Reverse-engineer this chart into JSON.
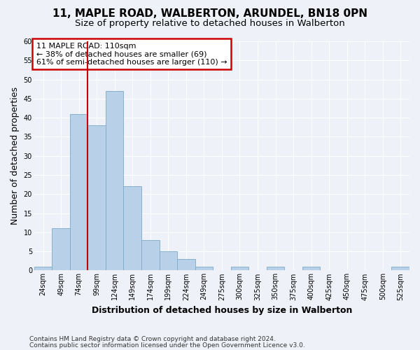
{
  "title1": "11, MAPLE ROAD, WALBERTON, ARUNDEL, BN18 0PN",
  "title2": "Size of property relative to detached houses in Walberton",
  "xlabel": "Distribution of detached houses by size in Walberton",
  "ylabel": "Number of detached properties",
  "categories": [
    "24sqm",
    "49sqm",
    "74sqm",
    "99sqm",
    "124sqm",
    "149sqm",
    "174sqm",
    "199sqm",
    "224sqm",
    "249sqm",
    "275sqm",
    "300sqm",
    "325sqm",
    "350sqm",
    "375sqm",
    "400sqm",
    "425sqm",
    "450sqm",
    "475sqm",
    "500sqm",
    "525sqm"
  ],
  "values": [
    1,
    11,
    41,
    38,
    47,
    22,
    8,
    5,
    3,
    1,
    0,
    1,
    0,
    1,
    0,
    1,
    0,
    0,
    0,
    0,
    1
  ],
  "bar_color": "#b8d0e8",
  "bar_edge_color": "#7aaac8",
  "vline_x": 2.5,
  "vline_color": "#cc0000",
  "annotation_title": "11 MAPLE ROAD: 110sqm",
  "annotation_line1": "← 38% of detached houses are smaller (69)",
  "annotation_line2": "61% of semi-detached houses are larger (110) →",
  "annotation_box_color": "#cc0000",
  "annotation_bg": "#ffffff",
  "ylim": [
    0,
    60
  ],
  "yticks": [
    0,
    5,
    10,
    15,
    20,
    25,
    30,
    35,
    40,
    45,
    50,
    55,
    60
  ],
  "footnote1": "Contains HM Land Registry data © Crown copyright and database right 2024.",
  "footnote2": "Contains public sector information licensed under the Open Government Licence v3.0.",
  "bg_color": "#eef2f8",
  "grid_color": "#ffffff",
  "title1_fontsize": 11,
  "title2_fontsize": 9.5,
  "ylabel_fontsize": 9,
  "xlabel_fontsize": 9,
  "tick_fontsize": 7,
  "annot_fontsize": 8,
  "footnote_fontsize": 6.5
}
